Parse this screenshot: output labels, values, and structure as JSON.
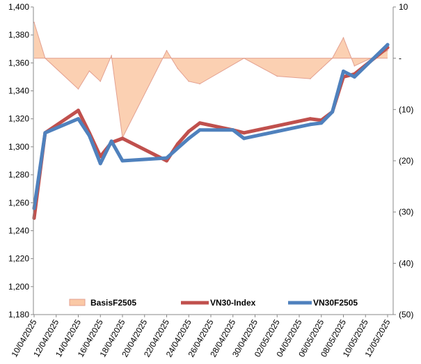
{
  "chart_data": {
    "type": "line",
    "left_axis": {
      "min": 1180,
      "max": 1400,
      "step": 20,
      "ticks": [
        "1,180",
        "1,200",
        "1,220",
        "1,240",
        "1,260",
        "1,280",
        "1,300",
        "1,320",
        "1,340",
        "1,360",
        "1,380",
        "1,400"
      ]
    },
    "right_axis": {
      "min": -50,
      "max": 10,
      "step": 10,
      "ticks": [
        "(50)",
        "(40)",
        "(30)",
        "(20)",
        "(10)",
        "-",
        "10"
      ]
    },
    "x_tick_labels": [
      "10/04/2025",
      "12/04/2025",
      "14/04/2025",
      "16/04/2025",
      "18/04/2025",
      "20/04/2025",
      "22/04/2025",
      "24/04/2025",
      "26/04/2025",
      "28/04/2025",
      "30/04/2025",
      "02/05/2025",
      "04/05/2025",
      "06/05/2025",
      "08/05/2025",
      "10/05/2025",
      "12/05/2025"
    ],
    "x_range": [
      "10/04/2025",
      "12/05/2025"
    ],
    "series": [
      {
        "name": "BasisF2505",
        "type": "area",
        "axis": "right",
        "color": "#fac8a5",
        "stroke": "#e3a090",
        "x": [
          "10/04/2025",
          "11/04/2025",
          "14/04/2025",
          "15/04/2025",
          "16/04/2025",
          "17/04/2025",
          "18/04/2025",
          "22/04/2025",
          "23/04/2025",
          "24/04/2025",
          "25/04/2025",
          "29/04/2025",
          "02/05/2025",
          "05/05/2025",
          "06/05/2025",
          "07/05/2025",
          "08/05/2025",
          "09/05/2025",
          "12/05/2025"
        ],
        "y": [
          7,
          0,
          -6,
          -2.5,
          -4.5,
          0.5,
          -15.5,
          1.5,
          -2,
          -4.5,
          -5,
          0,
          -3.5,
          -4,
          -2,
          0,
          4,
          -1.5,
          1.5
        ]
      },
      {
        "name": "VN30-Index",
        "type": "line",
        "axis": "left",
        "color": "#c0504d",
        "x": [
          "10/04/2025",
          "11/04/2025",
          "14/04/2025",
          "15/04/2025",
          "16/04/2025",
          "17/04/2025",
          "18/04/2025",
          "22/04/2025",
          "23/04/2025",
          "24/04/2025",
          "25/04/2025",
          "28/04/2025",
          "29/04/2025",
          "05/05/2025",
          "06/05/2025",
          "07/05/2025",
          "08/05/2025",
          "09/05/2025",
          "12/05/2025"
        ],
        "y": [
          1249,
          1310,
          1326,
          1310,
          1293,
          1303,
          1306,
          1290,
          1302,
          1311,
          1317,
          1312,
          1310,
          1320,
          1319,
          1325,
          1350,
          1352,
          1371
        ]
      },
      {
        "name": "VN30F2505",
        "type": "line",
        "axis": "left",
        "color": "#4f81bd",
        "x": [
          "10/04/2025",
          "11/04/2025",
          "14/04/2025",
          "15/04/2025",
          "16/04/2025",
          "17/04/2025",
          "18/04/2025",
          "22/04/2025",
          "23/04/2025",
          "24/04/2025",
          "25/04/2025",
          "28/04/2025",
          "29/04/2025",
          "05/05/2025",
          "06/05/2025",
          "07/05/2025",
          "08/05/2025",
          "09/05/2025",
          "12/05/2025"
        ],
        "y": [
          1256,
          1310,
          1320,
          1308,
          1288,
          1304,
          1290,
          1292,
          1299,
          1306,
          1312,
          1312,
          1306,
          1316,
          1317,
          1325,
          1354,
          1350,
          1373
        ]
      }
    ],
    "legend": {
      "position": "bottom-inside"
    }
  }
}
